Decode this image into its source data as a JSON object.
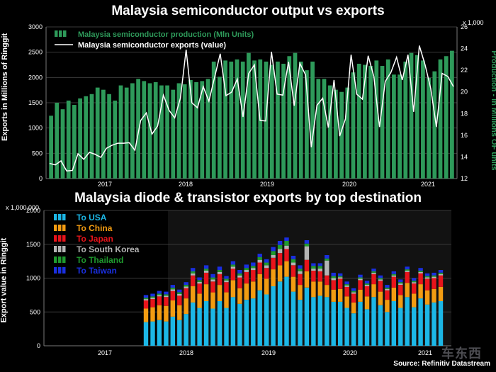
{
  "titles": {
    "top": "Malaysia semiconductor output vs exports",
    "bottom": "Malaysia diode & transistor exports by top destination"
  },
  "source": "Source: Refinitiv Datastream",
  "watermark": "车东西",
  "colors": {
    "production": "#2e9a5a",
    "exports_line": "#ffffff",
    "usa": "#1cb7e6",
    "china": "#f39c12",
    "japan": "#e8141b",
    "south_korea": "#b4b4b4",
    "thailand": "#1f9a2e",
    "taiwan": "#1a2fe0",
    "grid": "#3a3a3a"
  },
  "chart_data": [
    {
      "type": "bar+line",
      "title": "Malaysia semiconductor output vs exports",
      "ylabel": "Exports in Millions of Ringgit",
      "ylabel_right": "Production - In Millions OF units",
      "multiplier_right": "x 1,000",
      "ylim": [
        0,
        3000
      ],
      "ylim_right": [
        12,
        26
      ],
      "yticks": [
        "0",
        "500",
        "1000",
        "1500",
        "2000",
        "2500",
        "3000"
      ],
      "yticks_right": [
        "12",
        "14",
        "16",
        "18",
        "20",
        "22",
        "24",
        "26"
      ],
      "xticks": [
        "2017",
        "2018",
        "2019",
        "2020",
        "2021"
      ],
      "legend": [
        "Malaysia semiconductor production (Mln Units)",
        "Malaysia semiconductor exports (value)"
      ],
      "legend_position": "top-left",
      "series": [
        {
          "name": "Malaysia semiconductor production (Mln Units)",
          "type": "bar",
          "axis": "right",
          "values": [
            17.8,
            19.0,
            18.4,
            19.2,
            18.8,
            19.4,
            19.6,
            19.8,
            20.4,
            20.2,
            19.8,
            19.2,
            20.6,
            20.4,
            20.8,
            21.2,
            21.0,
            20.8,
            20.9,
            20.6,
            20.6,
            20.2,
            20.8,
            20.7,
            21.1,
            20.9,
            21.0,
            21.2,
            22.8,
            21.4,
            22.9,
            22.8,
            23.0,
            22.8,
            23.6,
            22.9,
            23.0,
            22.8,
            22.5,
            22.8,
            22.6,
            23.3,
            23.6,
            22.8,
            22.0,
            22.8,
            21.2,
            21.2,
            20.6,
            20.2,
            20.0,
            20.4,
            21.8,
            22.6,
            22.5,
            22.4,
            22.9,
            22.4,
            23.0,
            21.6,
            21.6,
            22.8,
            23.6,
            23.4,
            22.9,
            21.3,
            21.9,
            23.0,
            23.3,
            23.8
          ]
        },
        {
          "name": "Malaysia semiconductor exports (value)",
          "type": "line",
          "axis": "left",
          "values": [
            300,
            270,
            350,
            150,
            160,
            490,
            380,
            520,
            480,
            420,
            600,
            660,
            700,
            700,
            710,
            560,
            1150,
            1300,
            880,
            1040,
            1650,
            1350,
            1200,
            1590,
            2550,
            1500,
            1400,
            1820,
            1530,
            2000,
            2470,
            1640,
            1710,
            1970,
            1220,
            2080,
            2250,
            1150,
            1140,
            2510,
            1670,
            1650,
            2310,
            1440,
            2280,
            2050,
            620,
            1450,
            1590,
            1010,
            1950,
            840,
            1180,
            2450,
            1670,
            1570,
            2430,
            2020,
            1020,
            1920,
            2100,
            2400,
            1950,
            2450,
            1320,
            2630,
            2250,
            1780,
            1020,
            2080,
            2020,
            1820
          ]
        }
      ]
    },
    {
      "type": "bar",
      "stacked": true,
      "title": "Malaysia diode & transistor exports by top destination",
      "ylabel": "Export value in Ringgit",
      "multiplier": "x 1,000,000",
      "ylim": [
        0,
        2000
      ],
      "yticks": [
        "0",
        "500",
        "1000",
        "1500",
        "2000"
      ],
      "xticks": [
        "2017",
        "2018",
        "2019",
        "2020",
        "2021"
      ],
      "legend_position": "top-left",
      "categories": [
        "Oct 2017",
        "Nov 2017",
        "Dec 2017",
        "Jan 2018",
        "Feb 2018",
        "Mar 2018",
        "Apr 2018",
        "May 2018",
        "Jun 2018",
        "Jul 2018",
        "Aug 2018",
        "Sep 2018",
        "Oct 2018",
        "Nov 2018",
        "Dec 2018",
        "Jan 2019",
        "Feb 2019",
        "Mar 2019",
        "Apr 2019",
        "May 2019",
        "Jun 2019",
        "Jul 2019",
        "Aug 2019",
        "Sep 2019",
        "Oct 2019",
        "Nov 2019",
        "Dec 2019",
        "Jan 2020",
        "Feb 2020",
        "Mar 2020",
        "Apr 2020",
        "May 2020",
        "Jun 2020",
        "Jul 2020",
        "Aug 2020",
        "Sep 2020",
        "Oct 2020",
        "Nov 2020",
        "Dec 2020",
        "Jan 2021",
        "Feb 2021",
        "Mar 2021",
        "Apr 2021",
        "May 2021",
        "Jun 2021"
      ],
      "series": [
        {
          "name": "To USA",
          "values": [
            350,
            360,
            380,
            360,
            430,
            380,
            470,
            640,
            560,
            660,
            550,
            660,
            560,
            720,
            620,
            680,
            700,
            820,
            760,
            880,
            950,
            1020,
            800,
            680,
            860,
            720,
            740,
            720,
            650,
            650,
            560,
            480,
            650,
            540,
            720,
            600,
            500,
            660,
            560,
            720,
            570,
            700,
            610,
            640,
            660
          ]
        },
        {
          "name": "To China",
          "values": [
            200,
            210,
            220,
            230,
            240,
            220,
            230,
            240,
            210,
            250,
            240,
            240,
            230,
            250,
            230,
            240,
            250,
            240,
            230,
            250,
            240,
            230,
            220,
            220,
            240,
            230,
            210,
            180,
            180,
            190,
            170,
            160,
            180,
            190,
            190,
            200,
            180,
            200,
            190,
            210,
            200,
            210,
            210,
            200,
            210
          ]
        },
        {
          "name": "To Japan",
          "values": [
            120,
            120,
            130,
            130,
            140,
            140,
            150,
            160,
            150,
            170,
            160,
            160,
            150,
            170,
            160,
            170,
            170,
            170,
            160,
            170,
            180,
            180,
            170,
            160,
            170,
            160,
            150,
            140,
            140,
            150,
            140,
            130,
            140,
            150,
            150,
            160,
            140,
            160,
            150,
            160,
            150,
            160,
            170,
            160,
            170
          ]
        },
        {
          "name": "To South Korea",
          "values": [
            20,
            20,
            20,
            20,
            25,
            25,
            25,
            30,
            25,
            30,
            30,
            30,
            25,
            30,
            30,
            30,
            30,
            40,
            40,
            40,
            60,
            50,
            40,
            40,
            200,
            30,
            40,
            220,
            30,
            20,
            20,
            20,
            20,
            20,
            20,
            20,
            20,
            20,
            20,
            20,
            20,
            20,
            20,
            20,
            20
          ]
        },
        {
          "name": "To Thailand",
          "values": [
            20,
            20,
            20,
            20,
            25,
            25,
            25,
            30,
            25,
            30,
            30,
            30,
            25,
            30,
            30,
            30,
            30,
            40,
            40,
            60,
            60,
            70,
            50,
            40,
            40,
            40,
            40,
            30,
            30,
            20,
            20,
            20,
            20,
            20,
            20,
            20,
            20,
            20,
            20,
            20,
            20,
            20,
            20,
            20,
            20
          ]
        },
        {
          "name": "To Taiwan",
          "values": [
            40,
            40,
            40,
            40,
            40,
            40,
            40,
            50,
            40,
            50,
            50,
            50,
            40,
            50,
            50,
            50,
            50,
            50,
            50,
            60,
            60,
            50,
            50,
            50,
            50,
            40,
            40,
            50,
            50,
            40,
            40,
            40,
            40,
            40,
            40,
            40,
            40,
            40,
            40,
            40,
            40,
            40,
            40,
            40,
            40
          ]
        }
      ]
    }
  ]
}
